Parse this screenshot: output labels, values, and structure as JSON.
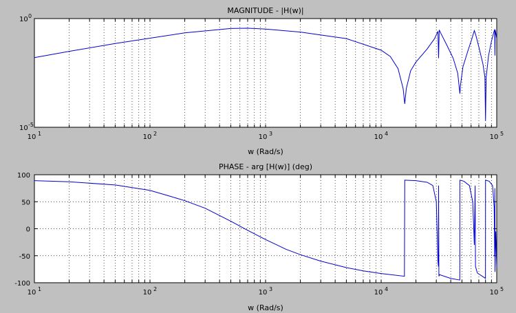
{
  "chart_data": [
    {
      "type": "line",
      "title": "MAGNITUDE - |H(w)|",
      "xlabel": "w (Rad/s)",
      "ylabel": "",
      "xscale": "log",
      "yscale": "log",
      "xlim": [
        10,
        100000
      ],
      "ylim": [
        1e-05,
        1
      ],
      "grid": "x-minor-dotted",
      "x_ticks": [
        {
          "value": 10,
          "base": "10",
          "exp": "1"
        },
        {
          "value": 100,
          "base": "10",
          "exp": "2"
        },
        {
          "value": 1000,
          "base": "10",
          "exp": "3"
        },
        {
          "value": 10000,
          "base": "10",
          "exp": "4"
        },
        {
          "value": 100000,
          "base": "10",
          "exp": "5"
        }
      ],
      "y_ticks": [
        {
          "value": 1,
          "base": "10",
          "exp": "0"
        },
        {
          "value": 1e-05,
          "base": "10",
          "exp": "-5"
        }
      ],
      "series": [
        {
          "color": "#0000cc",
          "points": [
            [
              10,
              0.016
            ],
            [
              20,
              0.031
            ],
            [
              50,
              0.071
            ],
            [
              100,
              0.125
            ],
            [
              200,
              0.22
            ],
            [
              500,
              0.35
            ],
            [
              700,
              0.36
            ],
            [
              1000,
              0.33
            ],
            [
              2000,
              0.24
            ],
            [
              5000,
              0.12
            ],
            [
              10000,
              0.035
            ],
            [
              12000,
              0.018
            ],
            [
              14000,
              0.005
            ],
            [
              15500,
              0.0006
            ],
            [
              16000,
              0.00012
            ],
            [
              16500,
              0.0006
            ],
            [
              18000,
              0.004
            ],
            [
              20000,
              0.01
            ],
            [
              25000,
              0.04
            ],
            [
              29000,
              0.12
            ],
            [
              31000,
              0.26
            ],
            [
              31400,
              0.015
            ],
            [
              31800,
              0.3
            ],
            [
              33000,
              0.2
            ],
            [
              37000,
              0.06
            ],
            [
              42000,
              0.015
            ],
            [
              46000,
              0.003
            ],
            [
              47500,
              0.0006
            ],
            [
              48000,
              0.00035
            ],
            [
              48500,
              0.0008
            ],
            [
              51000,
              0.006
            ],
            [
              56000,
              0.03
            ],
            [
              61000,
              0.12
            ],
            [
              64000,
              0.28
            ],
            [
              66000,
              0.17
            ],
            [
              70000,
              0.05
            ],
            [
              76000,
              0.008
            ],
            [
              79000,
              0.002
            ],
            [
              80000,
              2e-05
            ],
            [
              81000,
              0.002
            ],
            [
              85000,
              0.02
            ],
            [
              90000,
              0.09
            ],
            [
              94000,
              0.22
            ],
            [
              96000,
              0.32
            ],
            [
              96500,
              0.02
            ],
            [
              97000,
              0.3
            ],
            [
              100000,
              0.12
            ]
          ]
        }
      ]
    },
    {
      "type": "line",
      "title": "PHASE - arg [H(w)] (deg)",
      "xlabel": "w (Rad/s)",
      "ylabel": "",
      "xscale": "log",
      "yscale": "linear",
      "xlim": [
        10,
        100000
      ],
      "ylim": [
        -100,
        100
      ],
      "grid": "x-minor-dotted-y-major-dotted",
      "x_ticks": [
        {
          "value": 10,
          "base": "10",
          "exp": "1"
        },
        {
          "value": 100,
          "base": "10",
          "exp": "2"
        },
        {
          "value": 1000,
          "base": "10",
          "exp": "3"
        },
        {
          "value": 10000,
          "base": "10",
          "exp": "4"
        },
        {
          "value": 100000,
          "base": "10",
          "exp": "5"
        }
      ],
      "y_ticks": [
        {
          "value": 100,
          "label": "100"
        },
        {
          "value": 50,
          "label": "50"
        },
        {
          "value": 0,
          "label": "0"
        },
        {
          "value": -50,
          "label": "-50"
        },
        {
          "value": -100,
          "label": "-100"
        }
      ],
      "series": [
        {
          "color": "#0000cc",
          "points": [
            [
              10,
              89
            ],
            [
              20,
              87
            ],
            [
              50,
              81
            ],
            [
              100,
              71
            ],
            [
              150,
              60
            ],
            [
              200,
              52
            ],
            [
              300,
              38
            ],
            [
              500,
              14
            ],
            [
              700,
              -3
            ],
            [
              1000,
              -20
            ],
            [
              1500,
              -38
            ],
            [
              2000,
              -48
            ],
            [
              3000,
              -60
            ],
            [
              5000,
              -72
            ],
            [
              7000,
              -78
            ],
            [
              10000,
              -83
            ],
            [
              15900,
              -88
            ],
            [
              16000,
              90
            ],
            [
              20000,
              89
            ],
            [
              25000,
              86
            ],
            [
              28000,
              80
            ],
            [
              30000,
              50
            ],
            [
              31000,
              -60
            ],
            [
              31300,
              -70
            ],
            [
              31400,
              80
            ],
            [
              31600,
              -88
            ],
            [
              32000,
              -85
            ],
            [
              40000,
              -92
            ],
            [
              47900,
              -95
            ],
            [
              48000,
              90
            ],
            [
              52000,
              88
            ],
            [
              58000,
              80
            ],
            [
              62000,
              50
            ],
            [
              64000,
              -30
            ],
            [
              65000,
              80
            ],
            [
              65500,
              -70
            ],
            [
              68000,
              -82
            ],
            [
              75000,
              -88
            ],
            [
              79900,
              -92
            ],
            [
              80000,
              90
            ],
            [
              86000,
              88
            ],
            [
              92000,
              80
            ],
            [
              95000,
              40
            ],
            [
              96000,
              -50
            ],
            [
              96300,
              75
            ],
            [
              96600,
              -80
            ],
            [
              98000,
              -5
            ],
            [
              100000,
              -72
            ]
          ]
        }
      ]
    }
  ]
}
